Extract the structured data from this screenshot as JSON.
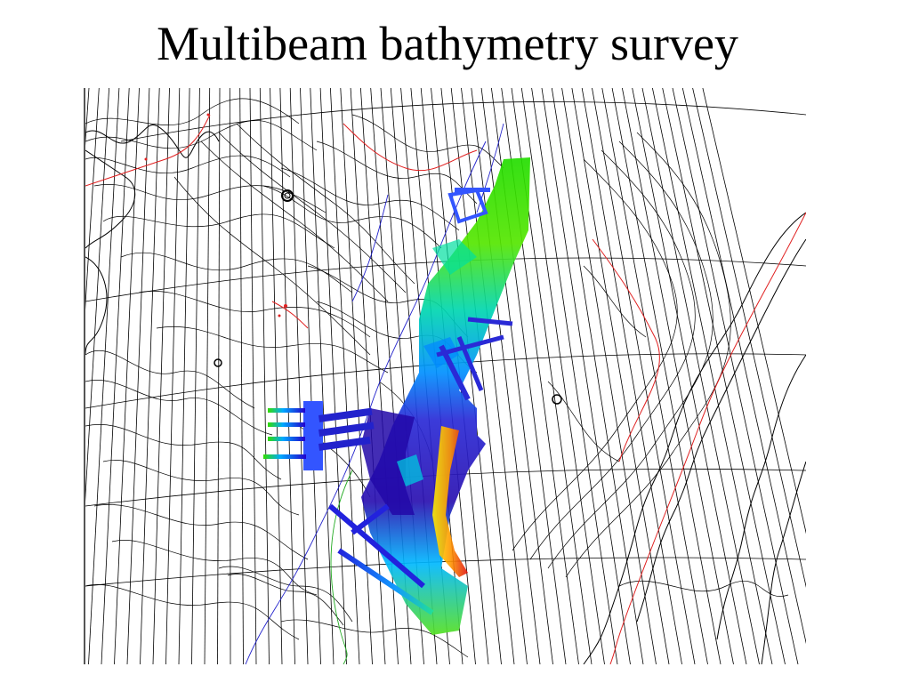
{
  "slide": {
    "title": "Multibeam bathymetry survey"
  },
  "map": {
    "type": "bathymetric-contour-map",
    "contour_color": "#000000",
    "graticule_color": "#000000",
    "boundary_line_color": "#e02020",
    "track_line_color": "#2222cc",
    "secondary_line_color": "#22aa22",
    "multibeam_colorscale": [
      "#e01010",
      "#ff9900",
      "#ffff00",
      "#33dd00",
      "#00ddcc",
      "#0088ff",
      "#2200cc"
    ]
  }
}
